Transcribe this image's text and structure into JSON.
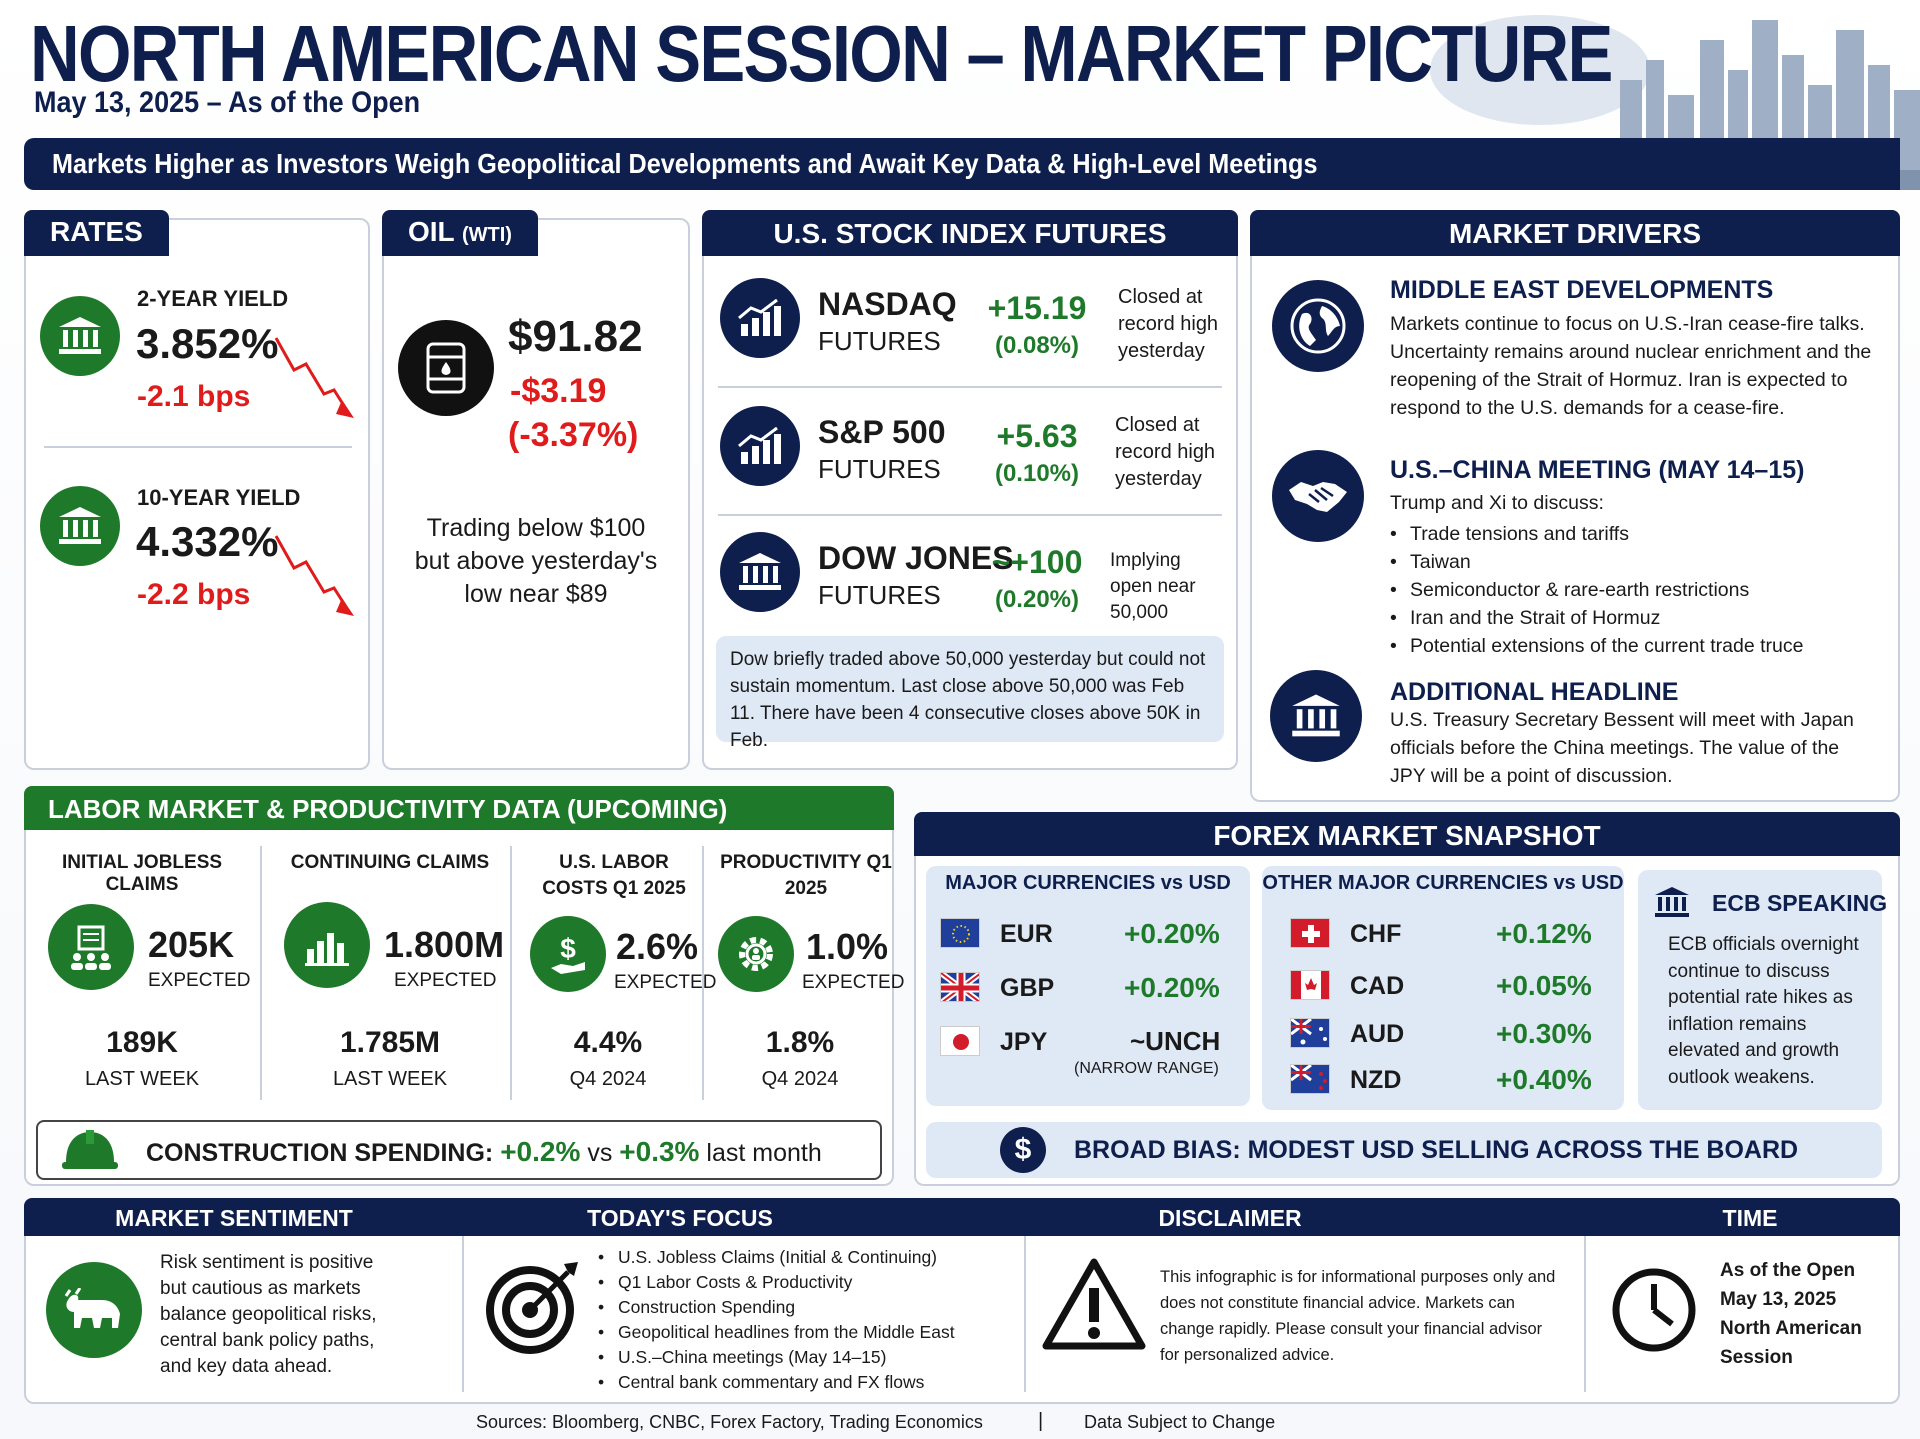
{
  "header": {
    "title": "NORTH AMERICAN SESSION – MARKET PICTURE",
    "date": "May 13, 2025 – As of the Open",
    "banner": "Markets Higher as Investors Weigh Geopolitical Developments and Await Key Data & High-Level Meetings"
  },
  "rates": {
    "title": "RATES",
    "two": {
      "label": "2-YEAR YIELD",
      "value": "3.852%",
      "change": "-2.1 bps"
    },
    "ten": {
      "label": "10-YEAR YIELD",
      "value": "4.332%",
      "change": "-2.2 bps"
    }
  },
  "oil": {
    "title": "OIL",
    "sub": "(WTI)",
    "price": "$91.82",
    "change": "-$3.19",
    "pct": "(-3.37%)",
    "note": "Trading below $100 but above yesterday's low near $89"
  },
  "futures": {
    "title": "U.S. STOCK INDEX FUTURES",
    "items": [
      {
        "name": "NASDAQ",
        "sub": "FUTURES",
        "change": "+15.19",
        "pct": "(0.08%)",
        "note": "Closed at record high yesterday"
      },
      {
        "name": "S&P 500",
        "sub": "FUTURES",
        "change": "+5.63",
        "pct": "(0.10%)",
        "note": "Closed at record high yesterday"
      },
      {
        "name": "DOW JONES",
        "sub": "FUTURES",
        "change": "~+100",
        "pct": "(0.20%)",
        "note": "Implying open near 50,000"
      }
    ],
    "footnote": "Dow briefly traded above 50,000 yesterday but could not sustain momentum. Last close above 50,000 was Feb 11. There have been 4 consecutive closes above 50K in Feb."
  },
  "drivers": {
    "title": "MARKET DRIVERS",
    "mideast": {
      "title": "MIDDLE EAST DEVELOPMENTS",
      "text": "Markets continue to focus on U.S.-Iran cease-fire talks. Uncertainty remains around nuclear enrichment and the reopening of the Strait of Hormuz. Iran is expected to respond to the U.S. demands for a cease-fire."
    },
    "china": {
      "title": "U.S.–CHINA MEETING (MAY 14–15)",
      "intro": "Trump and Xi to discuss:",
      "bullets": [
        "Trade tensions and tariffs",
        "Taiwan",
        "Semiconductor & rare-earth restrictions",
        "Iran and the Strait of Hormuz",
        "Potential extensions of the current trade truce"
      ]
    },
    "additional": {
      "title": "ADDITIONAL HEADLINE",
      "text": "U.S. Treasury Secretary Bessent will meet with Japan officials before the China meetings. The value of the JPY will be a point of discussion."
    }
  },
  "labor": {
    "title": "LABOR MARKET & PRODUCTIVITY DATA (UPCOMING)",
    "items": [
      {
        "label": "INITIAL JOBLESS CLAIMS",
        "value": "205K",
        "exp": "EXPECTED",
        "prev": "189K",
        "prev_label": "LAST WEEK"
      },
      {
        "label": "CONTINUING CLAIMS",
        "value": "1.800M",
        "exp": "EXPECTED",
        "prev": "1.785M",
        "prev_label": "LAST WEEK"
      },
      {
        "label": "U.S. LABOR COSTS Q1 2025",
        "value": "2.6%",
        "exp": "EXPECTED",
        "prev": "4.4%",
        "prev_label": "Q4 2024"
      },
      {
        "label": "PRODUCTIVITY Q1 2025",
        "value": "1.0%",
        "exp": "EXPECTED",
        "prev": "1.8%",
        "prev_label": "Q4 2024"
      }
    ],
    "construction": {
      "label": "CONSTRUCTION SPENDING:",
      "value": "+0.2%",
      "vs": "vs",
      "prev": "+0.3%",
      "tail": "last month"
    }
  },
  "forex": {
    "title": "FOREX MARKET SNAPSHOT",
    "majors_title": "MAJOR CURRENCIES vs USD",
    "majors": [
      {
        "code": "EUR",
        "change": "+0.20%"
      },
      {
        "code": "GBP",
        "change": "+0.20%"
      },
      {
        "code": "JPY",
        "change": "~UNCH",
        "note": "(NARROW RANGE)"
      }
    ],
    "others_title": "OTHER MAJOR CURRENCIES vs USD",
    "others": [
      {
        "code": "CHF",
        "change": "+0.12%"
      },
      {
        "code": "CAD",
        "change": "+0.05%"
      },
      {
        "code": "AUD",
        "change": "+0.30%"
      },
      {
        "code": "NZD",
        "change": "+0.40%"
      }
    ],
    "ecb": {
      "title": "ECB SPEAKING",
      "text": "ECB officials overnight continue to discuss potential rate hikes as inflation remains elevated and growth outlook weakens."
    },
    "bias": "BROAD BIAS:  MODEST USD SELLING ACROSS THE BOARD"
  },
  "footer": {
    "sentiment": {
      "title": "MARKET SENTIMENT",
      "text": "Risk sentiment is positive but cautious as markets balance geopolitical risks, central bank policy paths, and key data ahead."
    },
    "focus": {
      "title": "TODAY'S FOCUS",
      "items": [
        "U.S. Jobless Claims (Initial & Continuing)",
        "Q1 Labor Costs & Productivity",
        "Construction Spending",
        "Geopolitical headlines from the Middle East",
        "U.S.–China meetings (May 14–15)",
        "Central bank commentary and FX flows"
      ]
    },
    "disclaimer": {
      "title": "DISCLAIMER",
      "text": "This infographic is for informational purposes only and does not constitute financial advice. Markets can change rapidly. Please consult your financial advisor for personalized advice."
    },
    "time": {
      "title": "TIME",
      "text": "As of the Open May 13, 2025 North American Session"
    },
    "sources": "Sources: Bloomberg, CNBC, Forex Factory, Trading Economics",
    "divider": "|",
    "note": "Data Subject to Change"
  },
  "colors": {
    "navy": "#0e1f4d",
    "green": "#1e7a2a",
    "red": "#e01b1b"
  }
}
